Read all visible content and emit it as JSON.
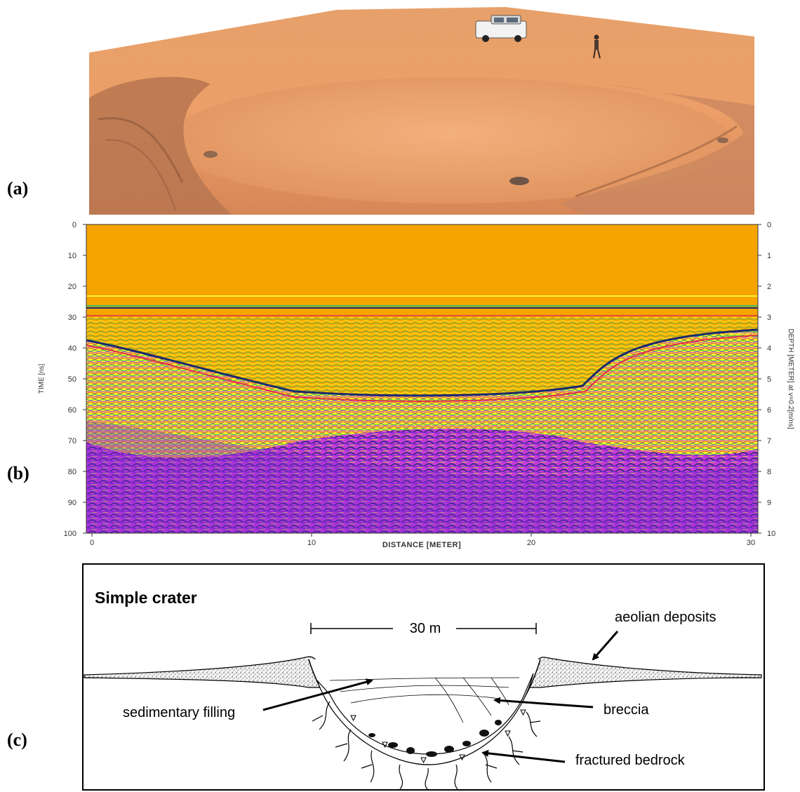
{
  "panels": {
    "a": "(a)",
    "b": "(b)",
    "c": "(c)"
  },
  "radargram": {
    "left_axis_label": "TIME [ns]",
    "right_axis_label": "DEPTH [METER] at v=0.2[m/ns]",
    "bottom_axis_label": "DISTANCE [METER]",
    "time_ticks": [
      "0",
      "10",
      "20",
      "30",
      "40",
      "50",
      "60",
      "70",
      "80",
      "90",
      "100"
    ],
    "depth_ticks": [
      "0",
      "1",
      "2",
      "3",
      "4",
      "5",
      "6",
      "7",
      "8",
      "9",
      "10"
    ],
    "distance_ticks": [
      "0",
      "10",
      "20",
      "30"
    ],
    "colors": {
      "background": "#f5a400",
      "yellow": "#f7f22a",
      "green": "#3fbf5a",
      "magenta": "#c43bd6",
      "purple": "#7a28d4",
      "navy": "#1a2a6e",
      "red": "#e0304a"
    }
  },
  "schematic": {
    "title": "Simple crater",
    "scale_label": "30 m",
    "labels": {
      "aeolian": "aeolian deposits",
      "sedimentary": "sedimentary filling",
      "breccia": "breccia",
      "fractured": "fractured bedrock"
    }
  }
}
